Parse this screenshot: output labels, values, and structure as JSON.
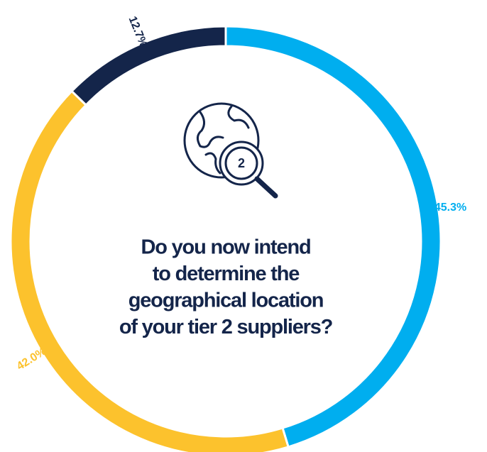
{
  "chart_data": {
    "type": "pie",
    "donut": true,
    "title": [
      "Do you now intend",
      "to determine the",
      "geographical location",
      "of your tier 2 suppliers?"
    ],
    "icon_text": "2",
    "values": [
      45.3,
      42.0,
      12.7
    ],
    "value_labels": [
      "45.3%",
      "42.0%",
      "12.7%"
    ],
    "colors": [
      "#00aeef",
      "#fcc22d",
      "#14254a"
    ]
  }
}
